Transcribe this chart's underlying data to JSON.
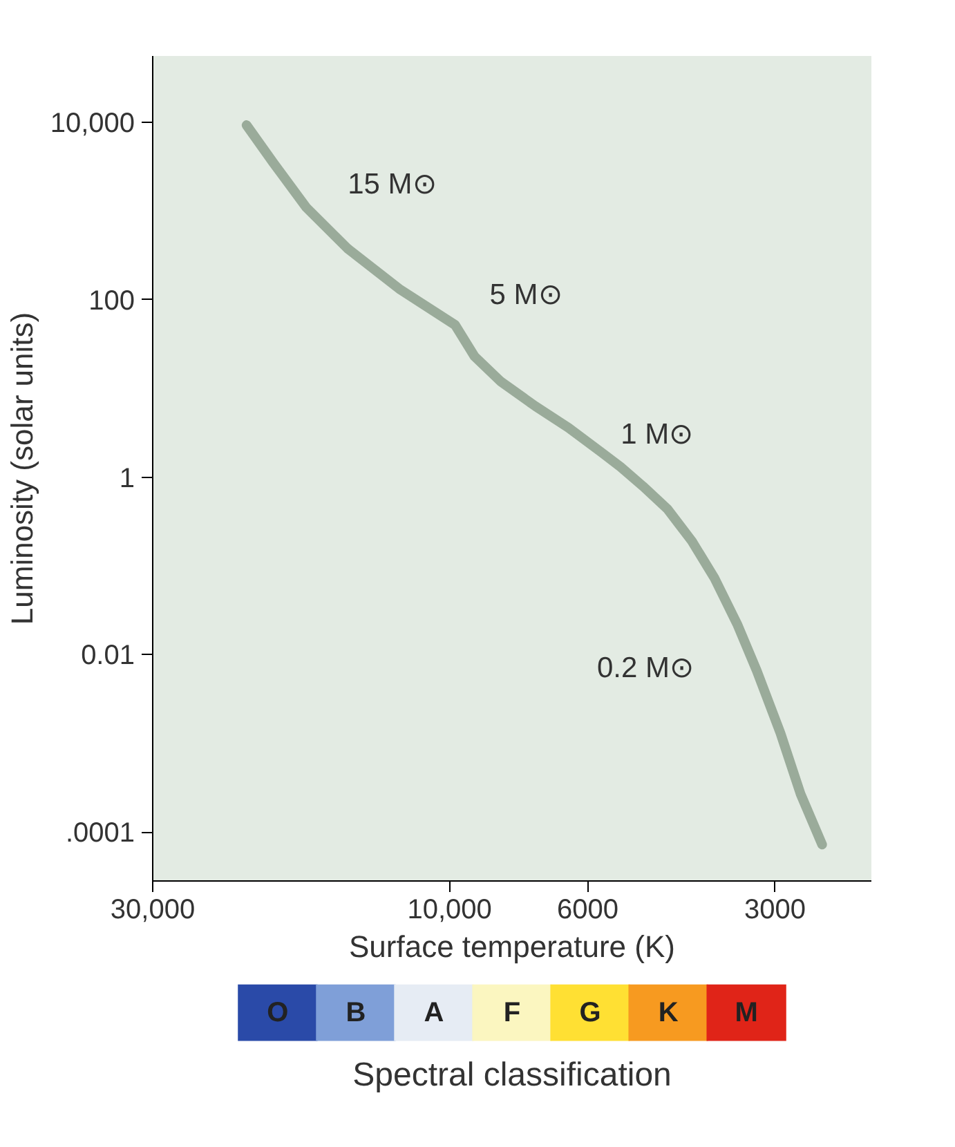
{
  "chart_data": {
    "type": "line",
    "xlabel": "Surface temperature (K)",
    "ylabel": "Luminosity (solar units)",
    "log": "xy",
    "xlim": [
      30000,
      2100
    ],
    "xticks": [
      {
        "value": 30000,
        "label": "30,000"
      },
      {
        "value": 10000,
        "label": "10,000"
      },
      6000,
      3000
    ],
    "ylim": [
      2.8e-05,
      56000
    ],
    "yticks": [
      {
        "value": 10000,
        "label": "10,000"
      },
      {
        "value": 100,
        "label": "100"
      },
      1,
      {
        "value": 0.01,
        "label": "0.01"
      },
      {
        "value": 0.0001,
        "label": ".0001"
      }
    ],
    "grid": false,
    "series": [
      {
        "color": "#9aab9a",
        "x": [
          21200,
          19200,
          17000,
          14600,
          12000,
          9800,
          9120,
          8280,
          7280,
          6440,
          5700,
          5310,
          4890,
          4470,
          4080,
          3750,
          3450,
          3210,
          2940,
          2730,
          2520
        ],
        "values": [
          9300,
          3500,
          1100,
          380,
          130,
          52,
          23,
          12,
          6.3,
          3.6,
          1.9,
          1.3,
          0.79,
          0.44,
          0.19,
          0.072,
          0.022,
          0.0066,
          0.0013,
          0.00027,
          7.2e-05
        ]
      }
    ],
    "annotations": [
      "15 M⊙",
      "5 M⊙",
      "1 M⊙",
      "0.2 M⊙",
      "O",
      "B",
      "A",
      "F",
      "G",
      "K",
      "M",
      "Spectral classification"
    ]
  }
}
